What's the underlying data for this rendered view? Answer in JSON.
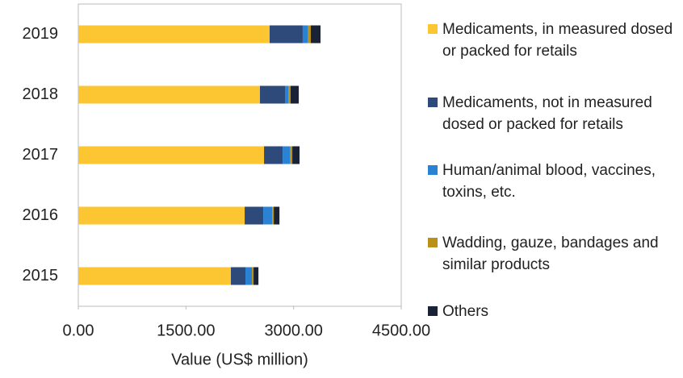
{
  "chart_data": {
    "type": "stacked-bar-horizontal",
    "x_label": "Value (US$ million)",
    "categories": [
      "2015",
      "2016",
      "2017",
      "2018",
      "2019"
    ],
    "series": [
      {
        "name": "Medicaments, in measured dosed or packed for retails",
        "color": "#fcc632",
        "values": [
          2126,
          2318,
          2588,
          2531,
          2666
        ]
      },
      {
        "name": "Medicaments, not in measured dosed or packed for retails",
        "color": "#2e4a7a",
        "values": [
          203,
          259,
          259,
          349,
          461
        ]
      },
      {
        "name": "Human/animal blood, vaccines, toxins, etc.",
        "color": "#2a82d4",
        "values": [
          90,
          124,
          101,
          45,
          68
        ]
      },
      {
        "name": "Wadding, gauze, bandages and similar products",
        "color": "#b8901a",
        "values": [
          23,
          23,
          34,
          34,
          45
        ]
      },
      {
        "name": "Others",
        "color": "#1a2336",
        "values": [
          68,
          79,
          101,
          113,
          135
        ]
      }
    ],
    "xlim": [
      0,
      4500
    ],
    "xticks": [
      {
        "value": 0,
        "label": "0.00"
      },
      {
        "value": 1500,
        "label": "1500.00"
      },
      {
        "value": 3000,
        "label": "3000.00"
      },
      {
        "value": 4500,
        "label": "4500.00"
      }
    ]
  }
}
